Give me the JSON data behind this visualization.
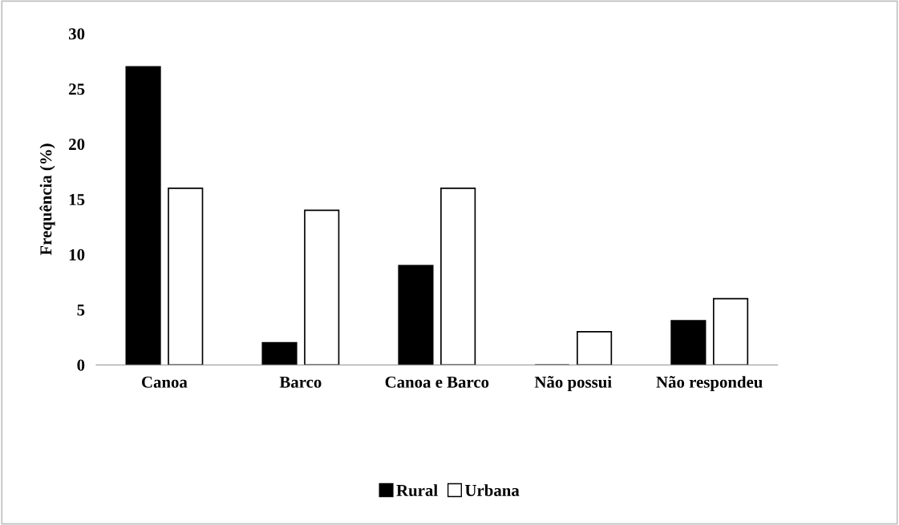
{
  "chart_data": {
    "type": "bar",
    "ylabel": "Frequência (%)",
    "categories": [
      "Canoa",
      "Barco",
      "Canoa e Barco",
      "Não possui",
      "Não respondeu"
    ],
    "series": [
      {
        "name": "Rural",
        "color": "#000000",
        "values": [
          27,
          2,
          9,
          0,
          4
        ]
      },
      {
        "name": "Urbana",
        "color": "#ffffff",
        "values": [
          16,
          14,
          16,
          3,
          6
        ]
      }
    ],
    "ylim": [
      0,
      30
    ],
    "yticks": [
      0,
      5,
      10,
      15,
      20,
      25,
      30
    ],
    "grid": false,
    "legend": "bottom"
  }
}
